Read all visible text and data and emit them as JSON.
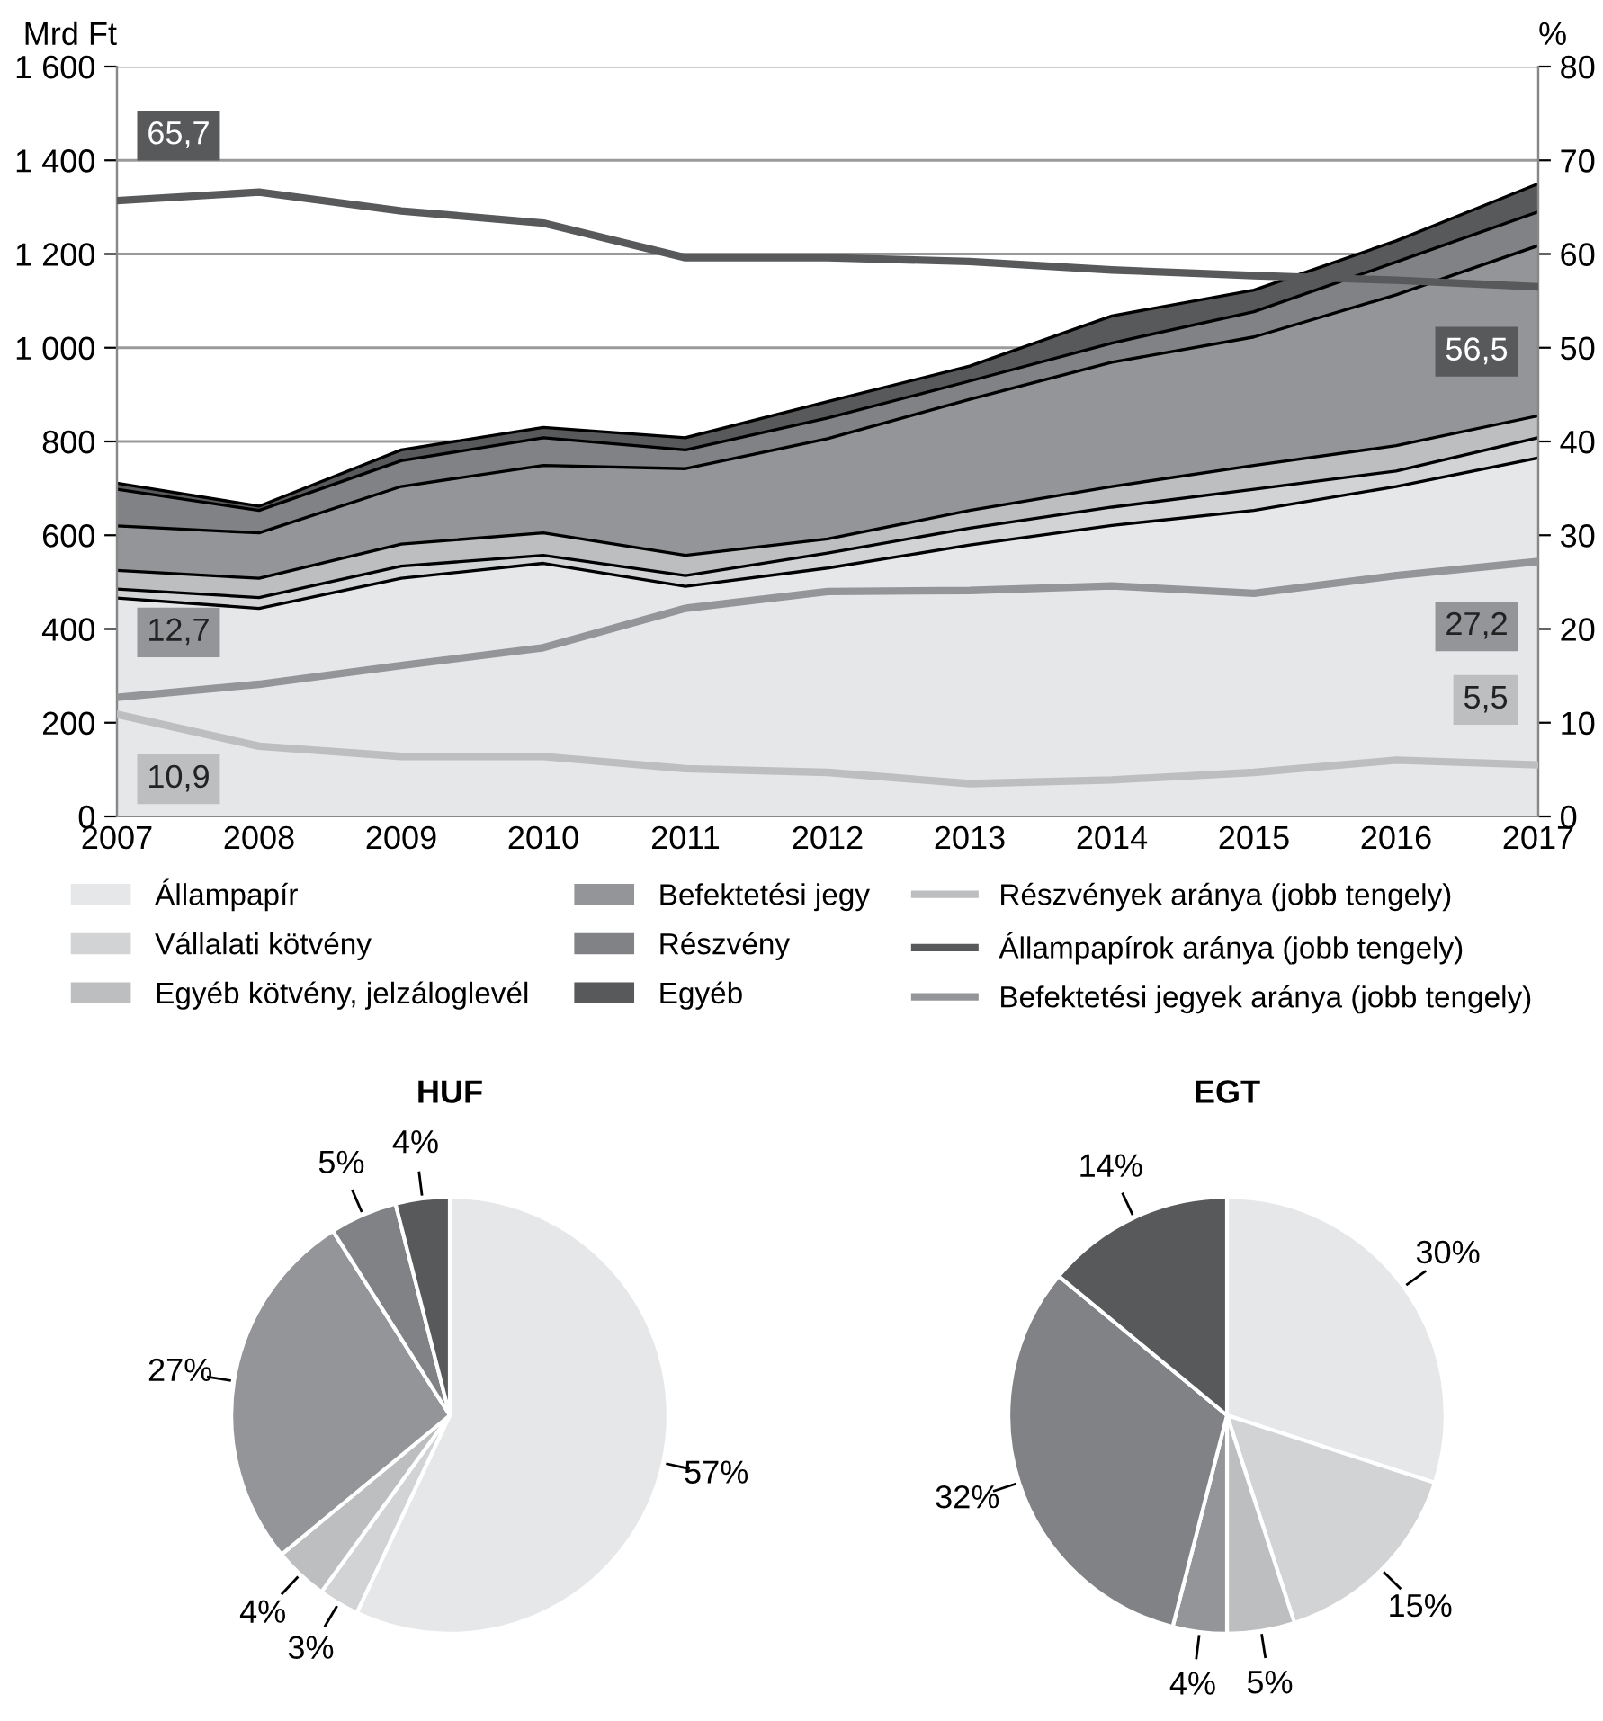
{
  "chart_data": [
    {
      "type": "area",
      "stacked": true,
      "categories": [
        "2007",
        "2008",
        "2009",
        "2010",
        "2011",
        "2012",
        "2013",
        "2014",
        "2015",
        "2016",
        "2017"
      ],
      "ylabel": "Mrd Ft",
      "y2label": "%",
      "ylim": [
        0,
        1600
      ],
      "yticks": [
        0,
        200,
        400,
        600,
        800,
        {
          "value": 1000,
          "label": "1 000"
        },
        {
          "value": 1200,
          "label": "1 200"
        },
        {
          "value": 1400,
          "label": "1 400"
        },
        {
          "value": 1600,
          "label": "1 600"
        }
      ],
      "y2lim": [
        0,
        80
      ],
      "y2ticks": [
        0,
        10,
        20,
        30,
        40,
        50,
        60,
        70,
        80
      ],
      "grid": "y",
      "legend": "bottom",
      "series": [
        {
          "name": "Állampapír",
          "color": "#e6e7e8",
          "values": [
            466,
            444,
            508,
            540,
            491,
            530,
            579,
            621,
            653,
            704,
            765
          ]
        },
        {
          "name": "Vállalati kötvény",
          "color": "#d1d3d4",
          "values": [
            19,
            23,
            26,
            17,
            23,
            32,
            36,
            39,
            45,
            33,
            43
          ]
        },
        {
          "name": "Egyéb kötvény, jelzáloglevél",
          "color": "#bcbec0",
          "values": [
            40,
            41,
            47,
            48,
            43,
            30,
            38,
            44,
            51,
            54,
            47
          ]
        },
        {
          "name": "Befektetési jegy",
          "color": "#939598",
          "values": [
            95,
            97,
            123,
            144,
            185,
            214,
            237,
            265,
            274,
            322,
            363
          ]
        },
        {
          "name": "Részvény",
          "color": "#808285",
          "values": [
            78,
            48,
            55,
            59,
            40,
            44,
            39,
            41,
            54,
            70,
            72
          ]
        },
        {
          "name": "Egyéb",
          "color": "#58595b",
          "values": [
            13,
            9,
            23,
            22,
            26,
            35,
            32,
            58,
            46,
            45,
            60
          ]
        },
        {
          "name": "Részvények aránya (jobb tengely)",
          "type": "line",
          "axis": "y2",
          "color": "#bcbec0",
          "values": [
            10.9,
            7.5,
            6.4,
            6.4,
            5.1,
            4.7,
            3.5,
            3.9,
            4.7,
            6.0,
            5.5
          ],
          "value_labels": [
            "10,9",
            null,
            null,
            null,
            null,
            null,
            null,
            null,
            null,
            null,
            "5,5"
          ]
        },
        {
          "name": "Állampapírok aránya (jobb tengely)",
          "type": "line",
          "axis": "y2",
          "color": "#58595b",
          "values": [
            65.7,
            66.6,
            64.6,
            63.3,
            59.6,
            59.6,
            59.2,
            58.3,
            57.7,
            57.2,
            56.5
          ],
          "value_labels": [
            "65,7",
            null,
            null,
            null,
            null,
            null,
            null,
            null,
            null,
            null,
            "56,5"
          ]
        },
        {
          "name": "Befektetési jegyek aránya (jobb tengely)",
          "type": "line",
          "axis": "y2",
          "color": "#939598",
          "values": [
            12.7,
            14.1,
            16.1,
            18.0,
            22.2,
            24.0,
            24.1,
            24.6,
            23.8,
            25.7,
            27.2
          ],
          "value_labels": [
            "12,7",
            null,
            null,
            null,
            null,
            null,
            null,
            null,
            null,
            null,
            "27,2"
          ]
        }
      ]
    },
    {
      "type": "pie",
      "title": "HUF",
      "categories": [
        null,
        null,
        null,
        null,
        null,
        null
      ],
      "values": [
        57,
        3,
        4,
        27,
        5,
        4
      ],
      "value_labels": [
        "57%",
        "3%",
        "4%",
        "27%",
        "5%",
        "4%"
      ],
      "colors": [
        "#e6e7e8",
        "#d1d3d4",
        "#bcbec0",
        "#939598",
        "#808285",
        "#58595b"
      ]
    },
    {
      "type": "pie",
      "title": "EGT",
      "categories": [
        null,
        null,
        null,
        null,
        null,
        null
      ],
      "values": [
        30,
        15,
        5,
        4,
        32,
        14
      ],
      "value_labels": [
        "30%",
        "15%",
        "5%",
        "4%",
        "32%",
        "14%"
      ],
      "colors": [
        "#e6e7e8",
        "#d1d3d4",
        "#bcbec0",
        "#939598",
        "#808285",
        "#58595b"
      ]
    }
  ]
}
